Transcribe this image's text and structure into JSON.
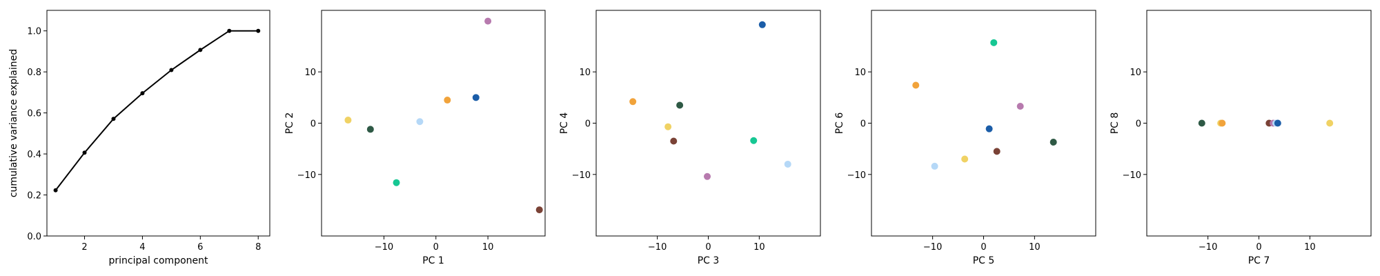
{
  "chart_data": [
    {
      "type": "line",
      "xlabel": "principal component",
      "ylabel": "cumulative variance explained",
      "xlim": [
        0.7,
        8.4
      ],
      "ylim": [
        0.0,
        1.1
      ],
      "xticks": [
        2,
        4,
        6,
        8
      ],
      "yticks": [
        0.0,
        0.2,
        0.4,
        0.6,
        0.8,
        1.0
      ],
      "ytick_labels": [
        "0.0",
        "0.2",
        "0.4",
        "0.6",
        "0.8",
        "1.0"
      ],
      "line_color": "#000000",
      "x": [
        1,
        2,
        3,
        4,
        5,
        6,
        7,
        8
      ],
      "y": [
        0.223,
        0.406,
        0.571,
        0.696,
        0.809,
        0.907,
        1.0,
        1.0
      ]
    },
    {
      "type": "scatter",
      "xlabel": "PC 1",
      "ylabel": "PC 2",
      "xlim": [
        -22,
        21
      ],
      "ylim": [
        -22,
        22
      ],
      "xticks": [
        -10,
        0,
        10
      ],
      "yticks": [
        -10,
        0,
        10
      ],
      "points": [
        {
          "x": -16.9,
          "y": 0.6,
          "color": "#F0D264"
        },
        {
          "x": -12.6,
          "y": -1.2,
          "color": "#2E5945"
        },
        {
          "x": -7.6,
          "y": -11.6,
          "color": "#16C793"
        },
        {
          "x": -3.1,
          "y": 0.3,
          "color": "#B5D8F7"
        },
        {
          "x": 2.2,
          "y": 4.5,
          "color": "#F1A33B"
        },
        {
          "x": 7.7,
          "y": 5.0,
          "color": "#1B5DA8"
        },
        {
          "x": 10.0,
          "y": 19.9,
          "color": "#B77AAE"
        },
        {
          "x": 19.9,
          "y": -16.9,
          "color": "#7A4236"
        }
      ]
    },
    {
      "type": "scatter",
      "xlabel": "PC 3",
      "ylabel": "PC 4",
      "xlim": [
        -22,
        22
      ],
      "ylim": [
        -22,
        22
      ],
      "xticks": [
        -10,
        0,
        10
      ],
      "yticks": [
        -10,
        0,
        10
      ],
      "points": [
        {
          "x": -14.8,
          "y": 4.2,
          "color": "#F1A33B"
        },
        {
          "x": -7.9,
          "y": -0.7,
          "color": "#F0D264"
        },
        {
          "x": -6.8,
          "y": -3.5,
          "color": "#7A4236"
        },
        {
          "x": -5.6,
          "y": 3.5,
          "color": "#2E5945"
        },
        {
          "x": -0.2,
          "y": -10.4,
          "color": "#B77AAE"
        },
        {
          "x": 8.9,
          "y": -3.4,
          "color": "#16C793"
        },
        {
          "x": 10.6,
          "y": 19.2,
          "color": "#1B5DA8"
        },
        {
          "x": 15.6,
          "y": -8.0,
          "color": "#B5D8F7"
        }
      ]
    },
    {
      "type": "scatter",
      "xlabel": "PC 5",
      "ylabel": "PC 6",
      "xlim": [
        -22,
        22
      ],
      "ylim": [
        -22,
        22
      ],
      "xticks": [
        -10,
        0,
        10
      ],
      "yticks": [
        -10,
        0,
        10
      ],
      "points": [
        {
          "x": -13.3,
          "y": 7.4,
          "color": "#F1A33B"
        },
        {
          "x": -9.6,
          "y": -8.4,
          "color": "#B5D8F7"
        },
        {
          "x": -3.7,
          "y": -7.0,
          "color": "#F0D264"
        },
        {
          "x": 1.1,
          "y": -1.1,
          "color": "#1B5DA8"
        },
        {
          "x": 2.0,
          "y": 15.7,
          "color": "#16C793"
        },
        {
          "x": 2.6,
          "y": -5.5,
          "color": "#7A4236"
        },
        {
          "x": 7.2,
          "y": 3.3,
          "color": "#B77AAE"
        },
        {
          "x": 13.7,
          "y": -3.7,
          "color": "#2E5945"
        }
      ]
    },
    {
      "type": "scatter",
      "xlabel": "PC 7",
      "ylabel": "PC 8",
      "xlim": [
        -22,
        22
      ],
      "ylim": [
        -22,
        22
      ],
      "xticks": [
        -10,
        0,
        10
      ],
      "yticks": [
        -10,
        0,
        10
      ],
      "points": [
        {
          "x": -11.2,
          "y": 0.0,
          "color": "#2E5945"
        },
        {
          "x": -7.5,
          "y": 0.0,
          "color": "#F0D264"
        },
        {
          "x": -7.2,
          "y": 0.0,
          "color": "#F1A33B"
        },
        {
          "x": 2.0,
          "y": 0.0,
          "color": "#7A4236"
        },
        {
          "x": 2.8,
          "y": 0.0,
          "color": "#B77AAE"
        },
        {
          "x": 3.3,
          "y": 0.0,
          "color": "#B5D8F7"
        },
        {
          "x": 3.7,
          "y": 0.0,
          "color": "#1B5DA8"
        },
        {
          "x": 13.9,
          "y": 0.0,
          "color": "#F0D264"
        }
      ]
    }
  ]
}
